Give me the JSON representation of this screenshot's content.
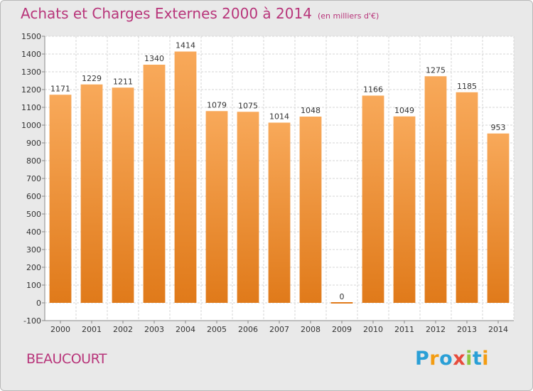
{
  "title": "Achats et Charges Externes 2000 à 2014",
  "unit": "(en milliers d'€)",
  "commune": "BEAUCOURT",
  "brand": {
    "letters": [
      "P",
      "r",
      "o",
      "x",
      "i",
      "t",
      "i"
    ],
    "colors": [
      "#2a9fd6",
      "#f39c12",
      "#2a9fd6",
      "#e74c3c",
      "#8dc63f",
      "#2a9fd6",
      "#f39c12"
    ]
  },
  "colors": {
    "title": "#b8357a",
    "bar_top": "#f8a95a",
    "bar_bottom": "#e07a1a",
    "background": "#e9e9e9",
    "plot_background": "#ffffff",
    "grid": "#d6d6d6"
  },
  "chart_data": {
    "type": "bar",
    "categories": [
      "2000",
      "2001",
      "2002",
      "2003",
      "2004",
      "2005",
      "2006",
      "2007",
      "2008",
      "2009",
      "2010",
      "2011",
      "2012",
      "2013",
      "2014"
    ],
    "values": [
      1171,
      1229,
      1211,
      1340,
      1414,
      1079,
      1075,
      1014,
      1048,
      0,
      1166,
      1049,
      1275,
      1185,
      953
    ],
    "ylim": [
      -100,
      1500
    ],
    "yticks": [
      -100,
      0,
      100,
      200,
      300,
      400,
      500,
      600,
      700,
      800,
      900,
      1000,
      1100,
      1200,
      1300,
      1400,
      1500
    ],
    "grid": true,
    "data_labels": true,
    "xlabel": "",
    "ylabel": ""
  }
}
